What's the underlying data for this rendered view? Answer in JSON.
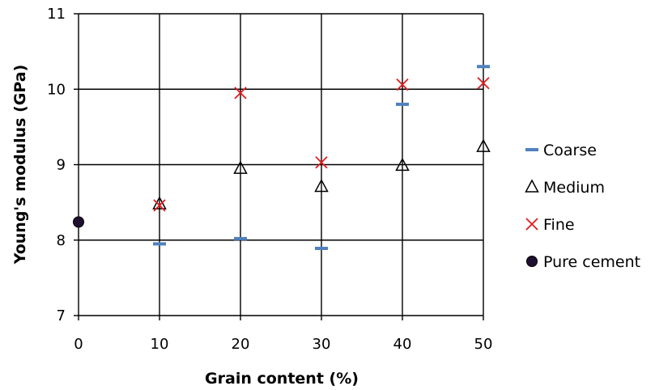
{
  "chart_data": {
    "type": "scatter",
    "xlabel": "Grain content (%)",
    "ylabel": "Young's modulus (GPa)",
    "xlim": [
      0,
      50
    ],
    "ylim": [
      7,
      11
    ],
    "xticks": [
      "0",
      "10",
      "20",
      "30",
      "40",
      "50"
    ],
    "yticks": [
      "7",
      "8",
      "9",
      "10",
      "11"
    ],
    "grid": true,
    "legend_position": "right",
    "series": [
      {
        "name": "Coarse",
        "marker": "dash",
        "color": "#4f81bd",
        "x": [
          10,
          20,
          30,
          40,
          50
        ],
        "y": [
          7.95,
          8.02,
          7.89,
          9.8,
          10.3
        ]
      },
      {
        "name": "Medium",
        "marker": "triangle",
        "color": "#000000",
        "x": [
          10,
          20,
          30,
          40,
          50
        ],
        "y": [
          8.48,
          8.95,
          8.71,
          8.99,
          9.24
        ]
      },
      {
        "name": "Fine",
        "marker": "cross",
        "color": "#e41a1c",
        "x": [
          10,
          20,
          30,
          40,
          50
        ],
        "y": [
          8.46,
          9.95,
          9.03,
          10.06,
          10.08
        ]
      },
      {
        "name": "Pure cement",
        "marker": "circle",
        "color": "#1f1030",
        "x": [
          0
        ],
        "y": [
          8.24
        ]
      }
    ]
  }
}
